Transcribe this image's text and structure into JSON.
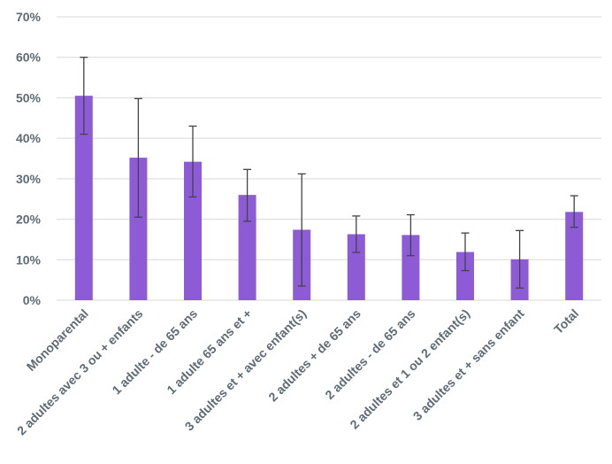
{
  "chart_data": {
    "type": "bar",
    "title": "",
    "xlabel": "",
    "ylabel": "",
    "ylim": [
      0,
      70
    ],
    "y_ticks": [
      0,
      10,
      20,
      30,
      40,
      50,
      60,
      70
    ],
    "y_tick_labels": [
      "0%",
      "10%",
      "20%",
      "30%",
      "40%",
      "50%",
      "60%",
      "70%"
    ],
    "grid": true,
    "bar_color": "#8e5bd6",
    "error_bar_color": "#404448",
    "categories": [
      "Monoparental",
      "2 adultes avec 3 ou + enfants",
      "1 adulte - de 65 ans",
      "1 adulte 65 ans et +",
      "3 adultes et + avec enfant(s)",
      "2 adultes + de 65 ans",
      "2 adultes - de 65 ans",
      "2 adultes et 1 ou 2 enfant(s)",
      "3 adultes et + sans enfant",
      "Total"
    ],
    "values": [
      50.5,
      35.2,
      34.2,
      26.0,
      17.4,
      16.3,
      16.1,
      11.9,
      10.1,
      21.8
    ],
    "error_low": [
      41.0,
      20.5,
      25.5,
      19.5,
      3.5,
      11.8,
      11.0,
      7.3,
      3.0,
      18.0
    ],
    "error_high": [
      60.0,
      49.8,
      43.0,
      32.3,
      31.2,
      20.8,
      21.1,
      16.6,
      17.2,
      25.8
    ]
  }
}
